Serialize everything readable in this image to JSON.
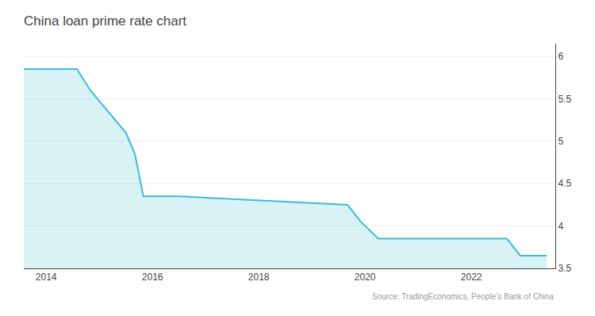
{
  "chart_data": {
    "type": "line",
    "title": "China loan prime rate chart",
    "annotations": [
      "Source: TradingEconomics, People’s Bank of China"
    ],
    "x": [
      2013.58,
      2014.58,
      2014.83,
      2015.16,
      2015.5,
      2015.67,
      2015.83,
      2016.5,
      2019.67,
      2019.92,
      2020.25,
      2022.67,
      2022.92,
      2023.42
    ],
    "values": [
      5.85,
      5.85,
      5.6,
      5.35,
      5.1,
      4.85,
      4.35,
      4.35,
      4.25,
      4.05,
      3.85,
      3.85,
      3.65,
      3.65
    ],
    "color": "#3dbcd4",
    "xlim": [
      2013.58,
      2023.58
    ],
    "xticks": [
      2014,
      2016,
      2018,
      2020,
      2022
    ],
    "ylim": [
      3.5,
      6.15
    ],
    "yticks": [
      3.5,
      4,
      4.5,
      5,
      5.5,
      6
    ],
    "grid": true
  }
}
